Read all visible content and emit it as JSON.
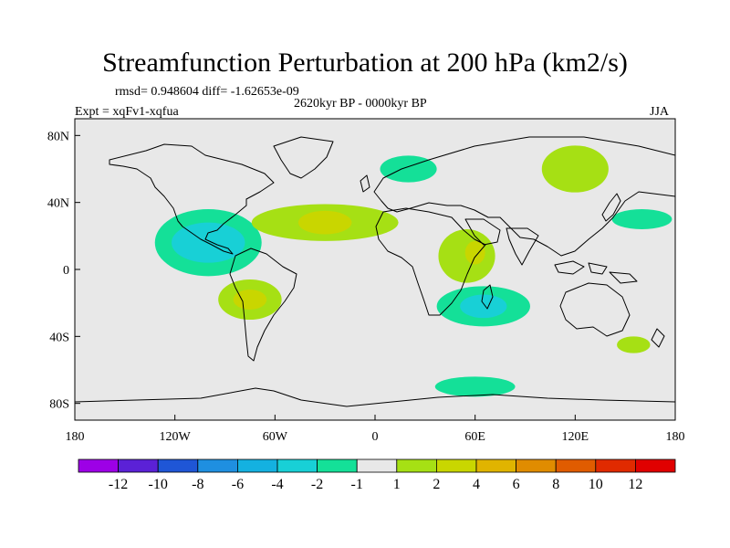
{
  "title": "Streamfunction Perturbation at 200 hPa (km2/s)",
  "stats": "rmsd= 0.948604 diff= -1.62653e-09",
  "period": "2620kyr BP - 0000kyr BP",
  "experiment": "Expt = xqFv1-xqfua",
  "season": "JJA",
  "chart_data": {
    "type": "heatmap",
    "projection": "cylindrical-equidistant",
    "variable": "Streamfunction Perturbation at 200 hPa",
    "units": "km2/s",
    "xlim": [
      -180,
      180
    ],
    "ylim": [
      -90,
      90
    ],
    "x_ticks": [
      {
        "value": -180,
        "label": "180"
      },
      {
        "value": -120,
        "label": "120W"
      },
      {
        "value": -60,
        "label": "60W"
      },
      {
        "value": 0,
        "label": "0"
      },
      {
        "value": 60,
        "label": "60E"
      },
      {
        "value": 120,
        "label": "120E"
      },
      {
        "value": 180,
        "label": "180"
      }
    ],
    "y_ticks": [
      {
        "value": 80,
        "label": "80N"
      },
      {
        "value": 40,
        "label": "40N"
      },
      {
        "value": 0,
        "label": "0"
      },
      {
        "value": -40,
        "label": "40S"
      },
      {
        "value": -80,
        "label": "80S"
      }
    ],
    "colorbar": {
      "labels": [
        "-12",
        "-10",
        "-8",
        "-6",
        "-4",
        "-2",
        "-1",
        "1",
        "2",
        "4",
        "6",
        "8",
        "10",
        "12"
      ],
      "colors": [
        "#9d00e6",
        "#5b21d6",
        "#1f56d6",
        "#1f8fe0",
        "#14b1e0",
        "#18d0d6",
        "#14e098",
        "#e8e8e8",
        "#a6e014",
        "#c9d600",
        "#e0b400",
        "#e08c00",
        "#e05c00",
        "#e02a00",
        "#e00000"
      ]
    },
    "regions": [
      {
        "label": "tropical east Pacific / Central America",
        "lon": -100,
        "lat": 16,
        "rx": 22,
        "ry": 12,
        "level": "-4"
      },
      {
        "label": "tropical east Pacific / Central America",
        "lon": -100,
        "lat": 16,
        "rx": 32,
        "ry": 20,
        "level": "-2"
      },
      {
        "label": "South Pacific",
        "lon": -75,
        "lat": -18,
        "rx": 10,
        "ry": 6,
        "level": "4"
      },
      {
        "label": "South Pacific",
        "lon": -75,
        "lat": -18,
        "rx": 19,
        "ry": 12,
        "level": "2"
      },
      {
        "label": "North Atlantic band",
        "lon": -30,
        "lat": 28,
        "rx": 16,
        "ry": 7,
        "level": "4"
      },
      {
        "label": "North Atlantic band",
        "lon": -30,
        "lat": 28,
        "rx": 44,
        "ry": 11,
        "level": "2"
      },
      {
        "label": "Southern Indian Ocean",
        "lon": 65,
        "lat": -22,
        "rx": 14,
        "ry": 7,
        "level": "-4"
      },
      {
        "label": "Southern Indian Ocean",
        "lon": 65,
        "lat": -22,
        "rx": 28,
        "ry": 12,
        "level": "-2"
      },
      {
        "label": "Arabian Sea",
        "lon": 60,
        "lat": 10,
        "rx": 6,
        "ry": 7,
        "level": "4"
      },
      {
        "label": "Arabian Sea",
        "lon": 55,
        "lat": 8,
        "rx": 17,
        "ry": 16,
        "level": "2"
      },
      {
        "label": "Siberia / Japan",
        "lon": 120,
        "lat": 60,
        "rx": 20,
        "ry": 14,
        "level": "2"
      },
      {
        "label": "Europe",
        "lon": 20,
        "lat": 60,
        "rx": 17,
        "ry": 8,
        "level": "-2"
      },
      {
        "label": "Antarctic coast",
        "lon": 60,
        "lat": -70,
        "rx": 24,
        "ry": 6,
        "level": "-2"
      },
      {
        "label": "Southeast Australia",
        "lon": 155,
        "lat": -45,
        "rx": 10,
        "ry": 5,
        "level": "2"
      },
      {
        "label": "North Pacific",
        "lon": 160,
        "lat": 30,
        "rx": 18,
        "ry": 6,
        "level": "-2"
      }
    ]
  }
}
